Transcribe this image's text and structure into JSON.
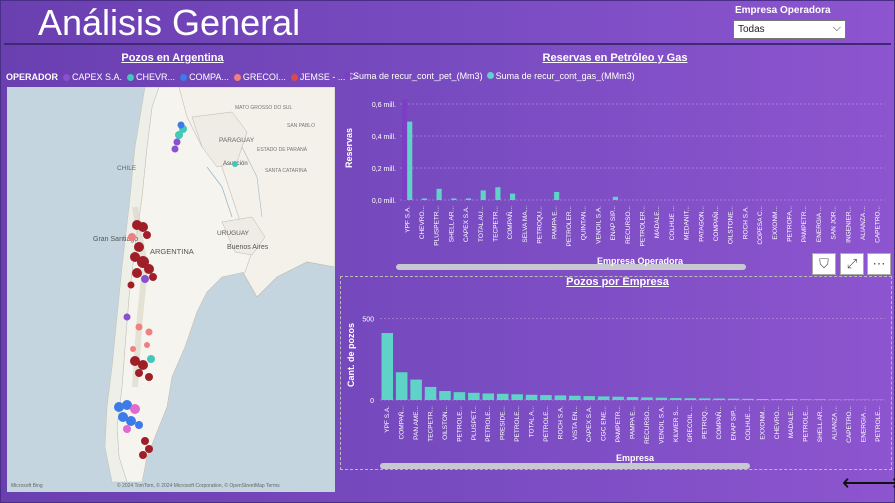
{
  "header": {
    "title": "Análisis General"
  },
  "filter": {
    "label": "Empresa Operadora",
    "value": "Todas"
  },
  "map_panel": {
    "title": "Pozos en Argentina",
    "legend_title": "OPERADOR",
    "legend": [
      {
        "label": "CAPEX S.A.",
        "color": "#8b4fd0"
      },
      {
        "label": "CHEVR...",
        "color": "#40c8b8"
      },
      {
        "label": "COMPA...",
        "color": "#3c7be8"
      },
      {
        "label": "GRECOI...",
        "color": "#f08080"
      },
      {
        "label": "JEMSE - ...",
        "color": "#e04848"
      }
    ],
    "labels": {
      "paraguay": "PARAGUAY",
      "chile": "CHILE",
      "argentina": "ARGENTINA",
      "uruguay": "URUGUAY",
      "gran_santiago": "Gran Santiago",
      "buenos_aires": "Buenos Aires",
      "asuncion": "Asunción",
      "mato_grosso": "MATO GROSSO DO SUL",
      "sao_paulo": "SAN PABLO",
      "parana": "ESTADO DE PARANÁ",
      "santa_catarina": "SANTA CATARINA"
    },
    "footer": "© 2024 TomTom, © 2024 Microsoft Corporation, © OpenStreetMap  Terms",
    "brand": "Microsoft Bing"
  },
  "colors": {
    "teal": "#5fd3c7",
    "purple": "#7b3fc4"
  },
  "chart_data": [
    {
      "type": "bar",
      "title": "Reservas en Petróleo y Gas",
      "xlabel": "Empresa Operadora",
      "ylabel": "Reservas",
      "y_ticks": [
        "0,0 mill.",
        "0,2 mill.",
        "0,4 mill.",
        "0,6 mill."
      ],
      "ylim": [
        0,
        0.65
      ],
      "categories": [
        "YPF S.A.",
        "CHEVRO...",
        "PLUSPETR...",
        "SHELL AR...",
        "CAPEX S.A.",
        "TOTAL AU...",
        "TECPETR...",
        "COMPAÑ...",
        "SELVA MA...",
        "PETROQU...",
        "PAMPA E...",
        "PETROLER...",
        "QUINTAN...",
        "VENOIL S.A.",
        "ENAP SIP...",
        "RECURSO...",
        "PETROLER...",
        "MADALE...",
        "COLHUE ...",
        "MEDANIT...",
        "PATAGON...",
        "COMPAÑI...",
        "OILSTONE...",
        "ROCH S.A.",
        "COPESA C...",
        "EXXONM...",
        "PETROFA...",
        "PAMPETR...",
        "ENERGIA ...",
        "SAN JOR...",
        "INGENIER...",
        "ALIANZA ...",
        "CAPETRO..."
      ],
      "series": [
        {
          "name": "Suma de recur_cont_pet_(Mm3)",
          "color": "#7b3fc4",
          "values": [
            0.63,
            0.0,
            0.0,
            0.0,
            0.0,
            0.0,
            0.0,
            0.0,
            0.0,
            0.0,
            0.0,
            0.0,
            0.0,
            0.0,
            0.0,
            0.0,
            0.0,
            0.0,
            0.0,
            0.0,
            0.0,
            0.0,
            0.0,
            0.0,
            0.0,
            0.0,
            0.0,
            0.0,
            0.0,
            0.0,
            0.0,
            0.0,
            0.0
          ]
        },
        {
          "name": "Suma de recur_cont_gas_(MMm3)",
          "color": "#5fd3c7",
          "values": [
            0.49,
            0.01,
            0.07,
            0.01,
            0.01,
            0.06,
            0.08,
            0.04,
            0.0,
            0.0,
            0.05,
            0.0,
            0.0,
            0.0,
            0.02,
            0.0,
            0.0,
            0.0,
            0.0,
            0.0,
            0.0,
            0.0,
            0.0,
            0.0,
            0.0,
            0.0,
            0.0,
            0.0,
            0.0,
            0.0,
            0.0,
            0.0,
            0.0
          ]
        }
      ]
    },
    {
      "type": "bar",
      "title": "Pozos por Empresa",
      "xlabel": "Empresa",
      "ylabel": "Cant. de pozos",
      "y_ticks": [
        "0",
        "500"
      ],
      "ylim": [
        0,
        600
      ],
      "categories": [
        "YPF S.A.",
        "COMPAÑ...",
        "PAN AME...",
        "TECPETR...",
        "OILSTON...",
        "PETROLE...",
        "PLUSPET...",
        "PETROLE...",
        "PRESIDE...",
        "PETROLE...",
        "TOTAL A...",
        "PETROLE...",
        "ROCH S.A.",
        "VISTA EN...",
        "CAPEX S.A.",
        "CGC ENE...",
        "PAMPETR...",
        "PAMPA E...",
        "RECURSO...",
        "VENOIL S.A.",
        "KILWER S...",
        "GRECOIL ...",
        "PETROQ...",
        "COMPAÑ...",
        "ENAP SIP...",
        "COLHUE ...",
        "EXXONM...",
        "CHEVRO...",
        "MADALE...",
        "PETROLE...",
        "SHELL AR...",
        "ALIANZA ...",
        "CAPETRO...",
        "ENERGIA ...",
        "PETROLE..."
      ],
      "values": [
        410,
        170,
        125,
        80,
        55,
        48,
        44,
        40,
        38,
        35,
        32,
        30,
        28,
        26,
        24,
        22,
        20,
        18,
        16,
        14,
        12,
        11,
        10,
        9,
        8,
        7,
        6,
        5,
        5,
        4,
        4,
        3,
        3,
        2,
        2
      ]
    }
  ]
}
